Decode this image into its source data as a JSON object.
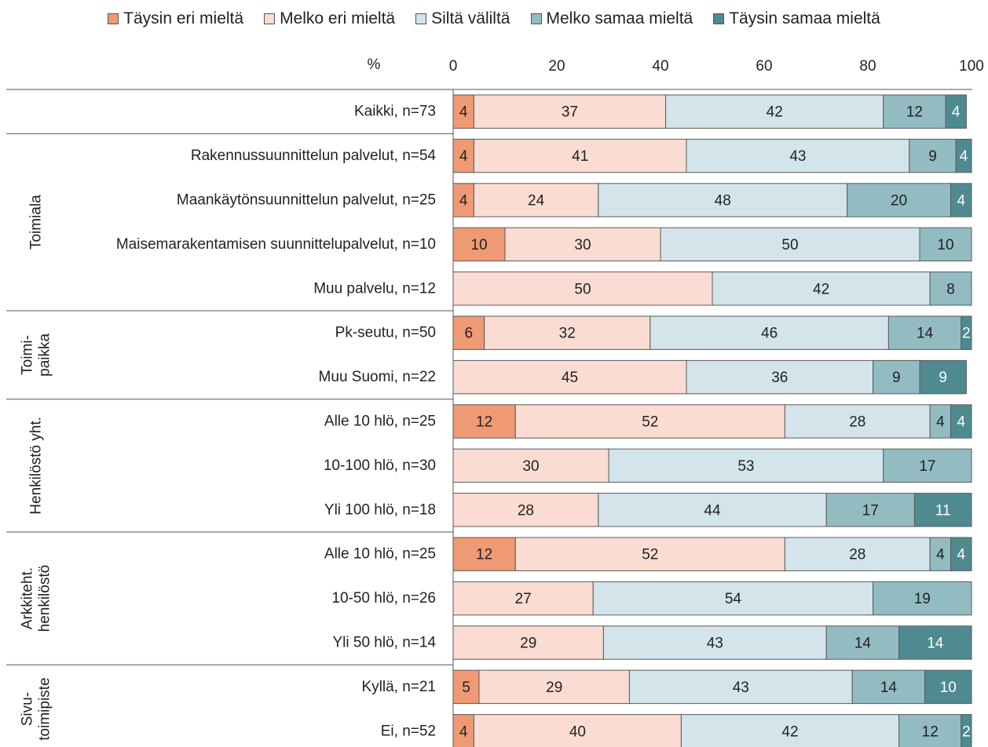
{
  "chart_data": {
    "type": "bar",
    "orientation": "horizontal",
    "stacked": true,
    "axis_unit_label": "%",
    "xlim": [
      0,
      100
    ],
    "xticks": [
      0,
      20,
      40,
      60,
      80,
      100
    ],
    "legend_position": "top",
    "series": [
      {
        "name": "Täysin eri mieltä",
        "color": "#EF9A74",
        "values": [
          4,
          4,
          4,
          10,
          0,
          6,
          0,
          12,
          0,
          0,
          12,
          0,
          0,
          5,
          4
        ]
      },
      {
        "name": "Melko eri mieltä",
        "color": "#FADCD2",
        "values": [
          37,
          41,
          24,
          30,
          50,
          32,
          45,
          52,
          30,
          28,
          52,
          27,
          29,
          29,
          40
        ]
      },
      {
        "name": "Siltä väliltä",
        "color": "#D3E4EA",
        "values": [
          42,
          43,
          48,
          50,
          42,
          46,
          36,
          28,
          53,
          44,
          28,
          54,
          43,
          43,
          42
        ]
      },
      {
        "name": "Melko samaa mieltä",
        "color": "#93BCC2",
        "values": [
          12,
          9,
          20,
          10,
          8,
          14,
          9,
          4,
          17,
          17,
          4,
          19,
          14,
          14,
          12
        ]
      },
      {
        "name": "Täysin samaa mieltä",
        "color": "#4F8A91",
        "values": [
          4,
          4,
          4,
          0,
          0,
          2,
          9,
          4,
          0,
          11,
          4,
          0,
          14,
          10,
          2
        ]
      }
    ],
    "categories": [
      "Kaikki, n=73",
      "Rakennussuunnittelun palvelut, n=54",
      "Maankäytönsuunnittelun palvelut, n=25",
      "Maisemarakentamisen suunnittelupalvelut, n=10",
      "Muu palvelu, n=12",
      "Pk-seutu, n=50",
      "Muu Suomi, n=22",
      "Alle 10 hlö, n=25",
      "10-100 hlö, n=30",
      "Yli 100 hlö, n=18",
      "Alle 10 hlö, n=25",
      "10-50 hlö, n=26",
      "Yli 50 hlö, n=14",
      "Kyllä, n=21",
      "Ei, n=52"
    ],
    "groups": [
      {
        "label_lines": [],
        "rows": [
          0,
          0
        ]
      },
      {
        "label_lines": [
          "Toimiala"
        ],
        "rows": [
          1,
          4
        ]
      },
      {
        "label_lines": [
          "Toimi-",
          "paikka"
        ],
        "rows": [
          5,
          6
        ]
      },
      {
        "label_lines": [
          "Henkilöstö yht."
        ],
        "rows": [
          7,
          9
        ]
      },
      {
        "label_lines": [
          "Arkkiteht.",
          "henkilöstö"
        ],
        "rows": [
          10,
          12
        ]
      },
      {
        "label_lines": [
          "Sivu-",
          "toimipiste"
        ],
        "rows": [
          13,
          14
        ]
      }
    ]
  }
}
